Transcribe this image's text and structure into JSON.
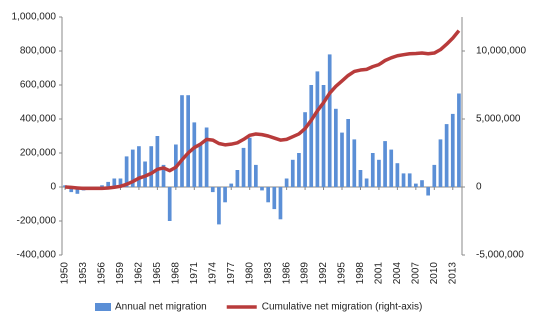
{
  "chart_data": {
    "type": "bar-line",
    "x": [
      1950,
      1951,
      1952,
      1953,
      1954,
      1955,
      1956,
      1957,
      1958,
      1959,
      1960,
      1961,
      1962,
      1963,
      1964,
      1965,
      1966,
      1967,
      1968,
      1969,
      1970,
      1971,
      1972,
      1973,
      1974,
      1975,
      1976,
      1977,
      1978,
      1979,
      1980,
      1981,
      1982,
      1983,
      1984,
      1985,
      1986,
      1987,
      1988,
      1989,
      1990,
      1991,
      1992,
      1993,
      1994,
      1995,
      1996,
      1997,
      1998,
      1999,
      2000,
      2001,
      2002,
      2003,
      2004,
      2005,
      2006,
      2007,
      2008,
      2009,
      2010,
      2011,
      2012,
      2013,
      2014
    ],
    "xlim": [
      1949.5,
      2014.5
    ],
    "xticks": [
      1950,
      1953,
      1956,
      1959,
      1962,
      1965,
      1968,
      1971,
      1974,
      1977,
      1980,
      1983,
      1986,
      1989,
      1992,
      1995,
      1998,
      2001,
      2004,
      2007,
      2010,
      2013
    ],
    "series": [
      {
        "name": "Annual net migration",
        "color": "#5b8fd6",
        "values": [
          10000,
          -30000,
          -40000,
          -20000,
          -10000,
          0,
          10000,
          30000,
          50000,
          50000,
          180000,
          220000,
          240000,
          150000,
          240000,
          300000,
          130000,
          -200000,
          250000,
          540000,
          540000,
          380000,
          250000,
          350000,
          -30000,
          -220000,
          -90000,
          20000,
          100000,
          230000,
          290000,
          130000,
          -20000,
          -90000,
          -130000,
          -190000,
          50000,
          160000,
          200000,
          440000,
          600000,
          680000,
          600000,
          780000,
          460000,
          320000,
          400000,
          280000,
          100000,
          50000,
          200000,
          160000,
          270000,
          220000,
          140000,
          80000,
          80000,
          20000,
          40000,
          -50000,
          130000,
          280000,
          370000,
          430000,
          550000
        ]
      },
      {
        "name": "Cumulative net migration (right-axis)",
        "color": "#b83b3b",
        "axis": "y2",
        "values": [
          0,
          -30000,
          -70000,
          -100000,
          -100000,
          -100000,
          -100000,
          -70000,
          -20000,
          50000,
          200000,
          400000,
          650000,
          800000,
          1000000,
          1300000,
          1400000,
          1200000,
          1450000,
          2000000,
          2500000,
          2900000,
          3150000,
          3500000,
          3450000,
          3200000,
          3100000,
          3150000,
          3250000,
          3500000,
          3800000,
          3900000,
          3850000,
          3750000,
          3600000,
          3450000,
          3500000,
          3700000,
          3900000,
          4300000,
          4900000,
          5600000,
          6200000,
          6900000,
          7400000,
          7800000,
          8200000,
          8500000,
          8600000,
          8650000,
          8850000,
          9000000,
          9300000,
          9500000,
          9650000,
          9730000,
          9800000,
          9820000,
          9850000,
          9800000,
          9850000,
          10100000,
          10500000,
          10950000,
          11500000
        ]
      }
    ],
    "ylim": [
      -400000,
      1000000
    ],
    "yticks": [
      {
        "value": -400000,
        "label": "-400,000"
      },
      {
        "value": -200000,
        "label": "-200,000"
      },
      0,
      {
        "value": 200000,
        "label": "200,000"
      },
      {
        "value": 400000,
        "label": "400,000"
      },
      {
        "value": 600000,
        "label": "600,000"
      },
      {
        "value": 800000,
        "label": "800,000"
      },
      {
        "value": 1000000,
        "label": "1,000,000"
      }
    ],
    "y2lim": [
      -5000000,
      12500000
    ],
    "y2ticks": [
      {
        "value": -5000000,
        "label": "-5,000,000"
      },
      0,
      {
        "value": 5000000,
        "label": "5,000,000"
      },
      {
        "value": 10000000,
        "label": "10,000,000"
      }
    ],
    "legend": "bottom"
  }
}
